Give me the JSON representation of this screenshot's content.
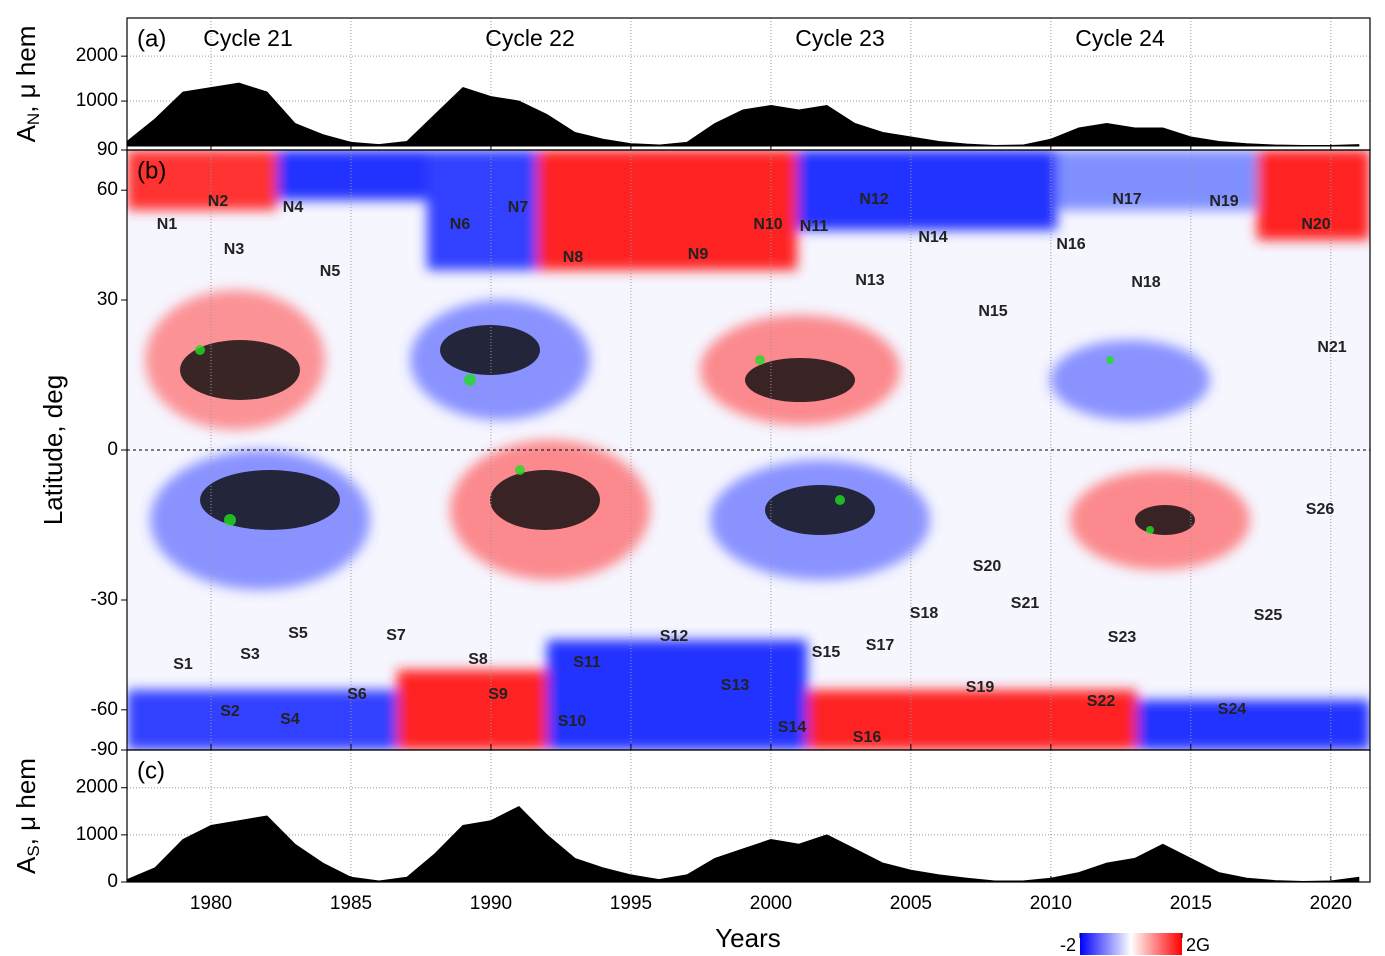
{
  "chart_data": [
    {
      "type": "area",
      "panel_label": "(a)",
      "ylabel": {
        "main": "A",
        "sub": "N",
        "rest": ", μ hem"
      },
      "annotations": [
        "Cycle 21",
        "Cycle 22",
        "Cycle 23",
        "Cycle 24"
      ],
      "color": "#000000",
      "x": [
        1977,
        1978,
        1979,
        1980,
        1981,
        1982,
        1983,
        1984,
        1985,
        1986,
        1987,
        1988,
        1989,
        1990,
        1991,
        1992,
        1993,
        1994,
        1995,
        1996,
        1997,
        1998,
        1999,
        2000,
        2001,
        2002,
        2003,
        2004,
        2005,
        2006,
        2007,
        2008,
        2009,
        2010,
        2011,
        2012,
        2013,
        2014,
        2015,
        2016,
        2017,
        2018,
        2019,
        2020,
        2021
      ],
      "values": [
        100,
        600,
        1200,
        1300,
        1400,
        1200,
        500,
        250,
        80,
        30,
        100,
        700,
        1300,
        1100,
        1000,
        700,
        300,
        150,
        50,
        20,
        80,
        500,
        800,
        900,
        800,
        900,
        500,
        300,
        200,
        100,
        40,
        10,
        20,
        150,
        400,
        500,
        400,
        400,
        200,
        100,
        50,
        20,
        10,
        10,
        30
      ],
      "xlim": [
        1977,
        2021.4
      ],
      "ylim": [
        -90,
        2850
      ],
      "yticks": [
        1000,
        2000
      ],
      "xticks": [
        1980,
        1985,
        1990,
        1995,
        2000,
        2005,
        2010,
        2015,
        2020
      ],
      "grid": true
    },
    {
      "type": "heatmap",
      "panel_label": "(b)",
      "ylabel": "Latitude, deg",
      "xlim": [
        1977,
        2021.4
      ],
      "ylim": [
        -90,
        90
      ],
      "yticks": [
        -90,
        -60,
        -30,
        0,
        30,
        60,
        90
      ],
      "y_scale": "sine",
      "xticks": [
        1980,
        1985,
        1990,
        1995,
        2000,
        2005,
        2010,
        2015,
        2020
      ],
      "grid": true,
      "labels": [
        "N1",
        "N2",
        "N3",
        "N4",
        "N5",
        "N6",
        "N7",
        "N8",
        "N9",
        "N10",
        "N11",
        "N12",
        "N13",
        "N14",
        "N15",
        "N16",
        "N17",
        "N18",
        "N19",
        "N20",
        "N21",
        "S1",
        "S2",
        "S3",
        "S4",
        "S5",
        "S6",
        "S7",
        "S8",
        "S9",
        "S10",
        "S11",
        "S12",
        "S13",
        "S14",
        "S15",
        "S16",
        "S17",
        "S18",
        "S19",
        "S20",
        "S21",
        "S22",
        "S23",
        "S24",
        "S25",
        "S26"
      ],
      "colorbar": {
        "colors": [
          "#0000ff",
          "#ffffff",
          "#ff0000"
        ],
        "ticks": [
          -2,
          {
            "value": 2,
            "label": "2G"
          }
        ]
      }
    },
    {
      "type": "area",
      "panel_label": "(c)",
      "ylabel": {
        "main": "A",
        "sub": "S",
        "rest": ", μ hem"
      },
      "xlabel": "Years",
      "color": "#000000",
      "x": [
        1977,
        1978,
        1979,
        1980,
        1981,
        1982,
        1983,
        1984,
        1985,
        1986,
        1987,
        1988,
        1989,
        1990,
        1991,
        1992,
        1993,
        1994,
        1995,
        1996,
        1997,
        1998,
        1999,
        2000,
        2001,
        2002,
        2003,
        2004,
        2005,
        2006,
        2007,
        2008,
        2009,
        2010,
        2011,
        2012,
        2013,
        2014,
        2015,
        2016,
        2017,
        2018,
        2019,
        2020,
        2021
      ],
      "values": [
        50,
        300,
        900,
        1200,
        1300,
        1400,
        800,
        400,
        100,
        20,
        100,
        600,
        1200,
        1300,
        1600,
        1000,
        500,
        300,
        150,
        50,
        150,
        500,
        700,
        900,
        800,
        1000,
        700,
        400,
        250,
        150,
        80,
        20,
        20,
        80,
        200,
        400,
        500,
        800,
        500,
        200,
        80,
        30,
        10,
        20,
        100
      ],
      "xlim": [
        1977,
        2021.4
      ],
      "ylim": [
        0,
        2800
      ],
      "yticks": [
        0,
        1000,
        2000
      ],
      "xticks": [
        1980,
        1985,
        1990,
        1995,
        2000,
        2005,
        2010,
        2015,
        2020
      ],
      "grid": true
    }
  ]
}
